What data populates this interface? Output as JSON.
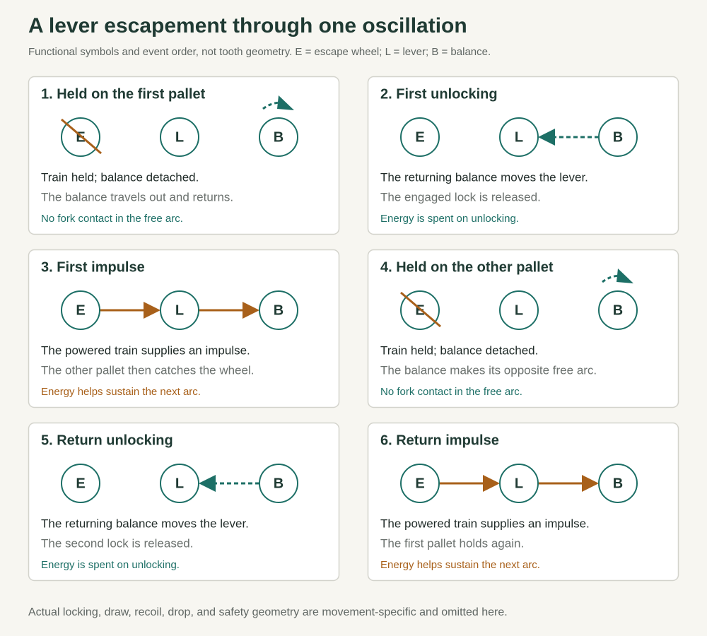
{
  "title": "A lever escapement through one oscillation",
  "subtitle": "Functional symbols and event order, not tooth geometry. E = escape wheel; L = lever; B = balance.",
  "nodes": [
    "E",
    "L",
    "B"
  ],
  "panels": [
    {
      "title": "1. Held on the first pallet",
      "lines": [
        "Train held; balance detached.",
        "The balance travels out and returns."
      ],
      "note": "No fork contact in the free arc."
    },
    {
      "title": "2. First unlocking",
      "lines": [
        "The returning balance moves the lever.",
        "The engaged lock is released."
      ],
      "note": "Energy is spent on unlocking."
    },
    {
      "title": "3. First impulse",
      "lines": [
        "The powered train supplies an impulse.",
        "The other pallet then catches the wheel."
      ],
      "note": "Energy helps sustain the next arc."
    },
    {
      "title": "4. Held on the other pallet",
      "lines": [
        "Train held; balance detached.",
        "The balance makes its opposite free arc."
      ],
      "note": "No fork contact in the free arc."
    },
    {
      "title": "5. Return unlocking",
      "lines": [
        "The returning balance moves the lever.",
        "The second lock is released."
      ],
      "note": "Energy is spent on unlocking."
    },
    {
      "title": "6. Return impulse",
      "lines": [
        "The powered train supplies an impulse.",
        "The first pallet holds again."
      ],
      "note": "Energy helps sustain the next arc."
    }
  ],
  "footer": "Actual locking, draw, recoil, drop, and safety geometry are movement-specific and omitted here."
}
